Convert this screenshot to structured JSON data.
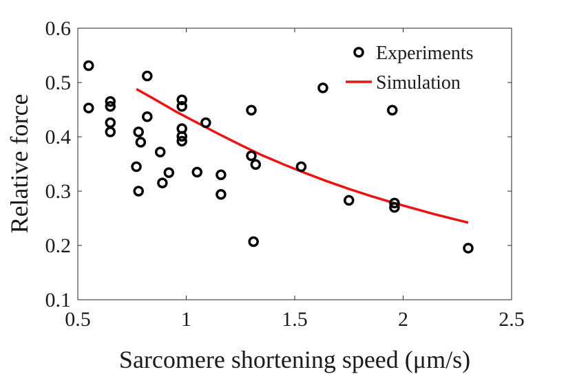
{
  "chart_data": {
    "type": "scatter",
    "xlabel": "Sarcomere shortening speed (μm/s)",
    "ylabel": "Relative force",
    "xlim": [
      0.5,
      2.5
    ],
    "ylim": [
      0.1,
      0.6
    ],
    "xticks": [
      "0.5",
      "1",
      "1.5",
      "2",
      "2.5"
    ],
    "yticks": [
      "0.1",
      "0.2",
      "0.3",
      "0.4",
      "0.5",
      "0.6"
    ],
    "grid": false,
    "legend_position": "top-right",
    "series": [
      {
        "name": "Experiments",
        "kind": "markers",
        "marker": "open-circle",
        "color": "#000000",
        "points": [
          [
            0.55,
            0.531
          ],
          [
            0.55,
            0.453
          ],
          [
            0.65,
            0.465
          ],
          [
            0.65,
            0.456
          ],
          [
            0.65,
            0.426
          ],
          [
            0.65,
            0.409
          ],
          [
            0.77,
            0.345
          ],
          [
            0.78,
            0.3
          ],
          [
            0.78,
            0.409
          ],
          [
            0.79,
            0.39
          ],
          [
            0.82,
            0.512
          ],
          [
            0.82,
            0.437
          ],
          [
            0.88,
            0.372
          ],
          [
            0.89,
            0.315
          ],
          [
            0.92,
            0.334
          ],
          [
            0.98,
            0.468
          ],
          [
            0.98,
            0.456
          ],
          [
            0.98,
            0.415
          ],
          [
            0.98,
            0.401
          ],
          [
            0.98,
            0.392
          ],
          [
            1.05,
            0.335
          ],
          [
            1.09,
            0.426
          ],
          [
            1.16,
            0.33
          ],
          [
            1.16,
            0.294
          ],
          [
            1.3,
            0.449
          ],
          [
            1.3,
            0.365
          ],
          [
            1.31,
            0.207
          ],
          [
            1.32,
            0.349
          ],
          [
            1.53,
            0.345
          ],
          [
            1.63,
            0.49
          ],
          [
            1.75,
            0.283
          ],
          [
            1.95,
            0.449
          ],
          [
            1.96,
            0.278
          ],
          [
            1.96,
            0.27
          ],
          [
            2.3,
            0.195
          ]
        ]
      },
      {
        "name": "Simulation",
        "kind": "line",
        "color": "#ee1111",
        "points": [
          [
            0.77,
            0.488
          ],
          [
            0.85,
            0.47
          ],
          [
            0.95,
            0.447
          ],
          [
            1.05,
            0.426
          ],
          [
            1.15,
            0.405
          ],
          [
            1.25,
            0.385
          ],
          [
            1.35,
            0.366
          ],
          [
            1.45,
            0.349
          ],
          [
            1.55,
            0.333
          ],
          [
            1.65,
            0.318
          ],
          [
            1.75,
            0.304
          ],
          [
            1.85,
            0.291
          ],
          [
            1.95,
            0.279
          ],
          [
            2.05,
            0.268
          ],
          [
            2.15,
            0.257
          ],
          [
            2.25,
            0.247
          ],
          [
            2.3,
            0.242
          ]
        ]
      }
    ]
  }
}
